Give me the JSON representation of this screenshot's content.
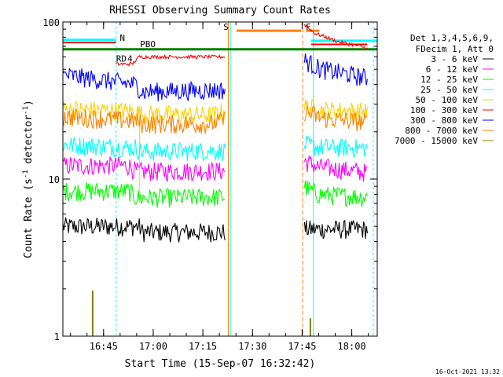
{
  "chart_data": {
    "type": "line",
    "title": "RHESSI Observing Summary Count Rates",
    "xlabel": "Start Time (15-Sep-07 16:32:42)",
    "ylabel_main": "Count Rate (s",
    "ylabel_sup": "-1",
    "ylabel_mid": " detector",
    "ylabel_end": ")",
    "yscale": "log",
    "ylim": [
      1,
      100
    ],
    "xlim_minutes": [
      0,
      95
    ],
    "x_ticks": [
      {
        "label": "16:45",
        "minute": 12.3
      },
      {
        "label": "17:00",
        "minute": 27.3
      },
      {
        "label": "17:15",
        "minute": 42.3
      },
      {
        "label": "17:30",
        "minute": 57.3
      },
      {
        "label": "17:45",
        "minute": 72.3
      },
      {
        "label": "18:00",
        "minute": 87.3
      }
    ],
    "y_ticks": [
      {
        "label": "1",
        "value": 1
      },
      {
        "label": "10",
        "value": 10
      },
      {
        "label": "100",
        "value": 100
      }
    ],
    "legend_title": [
      "Det 1,3,4,5,6,9,",
      "FDecim 1, Att 0"
    ],
    "series": [
      {
        "name": "3 - 6 keV",
        "color": "#000000",
        "segments": [
          [
            [
              0,
              5.0
            ],
            [
              23,
              5.0
            ],
            [
              24,
              4.6
            ],
            [
              49,
              4.6
            ]
          ],
          [
            [
              73,
              4.8
            ],
            [
              92,
              4.8
            ]
          ]
        ]
      },
      {
        "name": "6 - 12 keV",
        "color": "#ff00ff",
        "segments": [
          [
            [
              0,
              12.2
            ],
            [
              20,
              12.2
            ],
            [
              22,
              11.2
            ],
            [
              49,
              11.3
            ]
          ],
          [
            [
              73,
              13.0
            ],
            [
              77,
              12.0
            ],
            [
              92,
              11.0
            ]
          ]
        ]
      },
      {
        "name": "12 - 25 keV",
        "color": "#00ff00",
        "segments": [
          [
            [
              0,
              8.4
            ],
            [
              20,
              8.4
            ],
            [
              22,
              7.6
            ],
            [
              49,
              7.7
            ]
          ],
          [
            [
              73,
              9.0
            ],
            [
              77,
              8.0
            ],
            [
              92,
              7.7
            ]
          ]
        ]
      },
      {
        "name": "25 - 50 keV",
        "color": "#00ffff",
        "segments": [
          [
            [
              0,
              16.6
            ],
            [
              22,
              15.8
            ],
            [
              24,
              15.0
            ],
            [
              49,
              15.2
            ]
          ],
          [
            [
              73,
              16.6
            ],
            [
              77,
              16.0
            ],
            [
              92,
              15.8
            ]
          ]
        ]
      },
      {
        "name": "50 - 100 keV",
        "color": "#ffd000",
        "segments": [
          [
            [
              0,
              28.0
            ],
            [
              22,
              27.0
            ],
            [
              24,
              26.0
            ],
            [
              45,
              25.5
            ],
            [
              49,
              27.0
            ]
          ],
          [
            [
              73,
              29.0
            ],
            [
              78,
              27.5
            ],
            [
              92,
              27.0
            ]
          ]
        ]
      },
      {
        "name": "100 - 300 keV",
        "color": "#ff0000",
        "segments": [
          [
            [
              16,
              54.0
            ],
            [
              21,
              54.0
            ],
            [
              23,
              60.0
            ],
            [
              49,
              60.0
            ]
          ],
          [
            [
              73,
              96.0
            ],
            [
              76,
              85.0
            ],
            [
              83,
              75.0
            ],
            [
              90,
              70.0
            ],
            [
              92,
              68.0
            ]
          ]
        ]
      },
      {
        "name": "300 - 800 keV",
        "color": "#0000ff",
        "segments": [
          [
            [
              0,
              46.0
            ],
            [
              22,
              40.0
            ],
            [
              24,
              36.0
            ],
            [
              49,
              37.0
            ]
          ],
          [
            [
              73,
              57.0
            ],
            [
              78,
              50.0
            ],
            [
              92,
              44.0
            ]
          ]
        ]
      },
      {
        "name": "800 - 7000 keV",
        "color": "#ff8000",
        "segments": [
          [
            [
              0,
              25.0
            ],
            [
              22,
              23.5
            ],
            [
              24,
              22.5
            ],
            [
              45,
              22.5
            ],
            [
              49,
              24.0
            ]
          ],
          [
            [
              73,
              27.0
            ],
            [
              78,
              24.5
            ],
            [
              92,
              23.0
            ]
          ]
        ]
      },
      {
        "name": "7000 - 15000 keV",
        "color": "#808000",
        "segments": []
      }
    ],
    "annotations": {
      "flag_n_label": "N",
      "flag_s_label": "S",
      "flag_rd_label": "RD",
      "flag_rd_value": "4",
      "flag_pbo_label": "PBO",
      "flag_f_label": "F",
      "saa_level": 88,
      "baseline_level": 67
    }
  },
  "footer": {
    "date": "16-Oct-2021 13:32"
  }
}
